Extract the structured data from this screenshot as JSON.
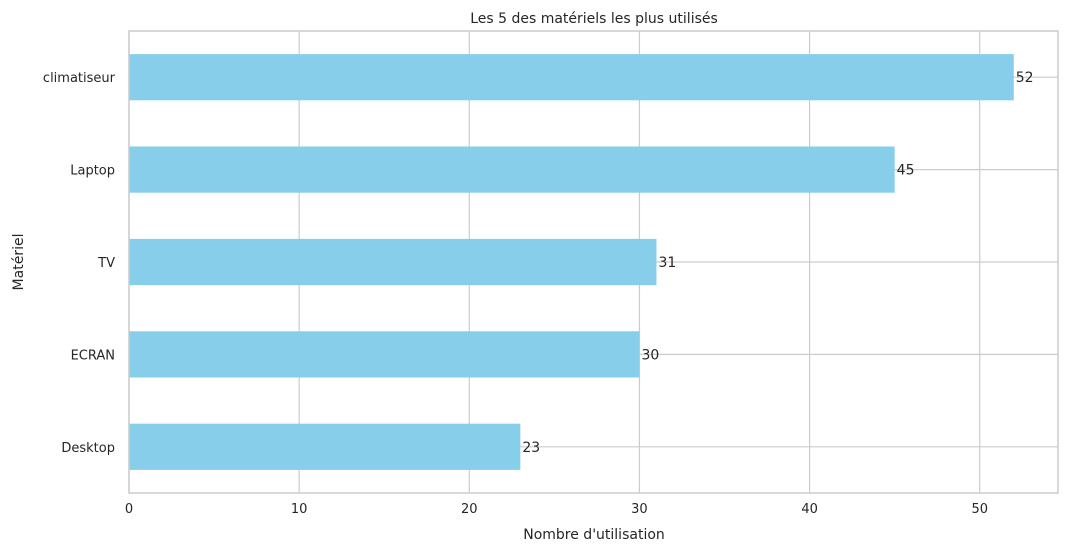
{
  "chart_data": {
    "type": "bar",
    "orientation": "horizontal",
    "title": "Les 5 des matériels les plus utilisés",
    "xlabel": "Nombre d'utilisation",
    "ylabel": "Matériel",
    "categories": [
      "climatiseur",
      "Laptop",
      "TV",
      "ECRAN",
      "Desktop"
    ],
    "values": [
      52,
      45,
      31,
      30,
      23
    ],
    "xlim": [
      0,
      54.6
    ],
    "xticks": [
      0,
      10,
      20,
      30,
      40,
      50
    ],
    "grid": true,
    "bar_color": "#87ceeb",
    "data_labels": true
  }
}
